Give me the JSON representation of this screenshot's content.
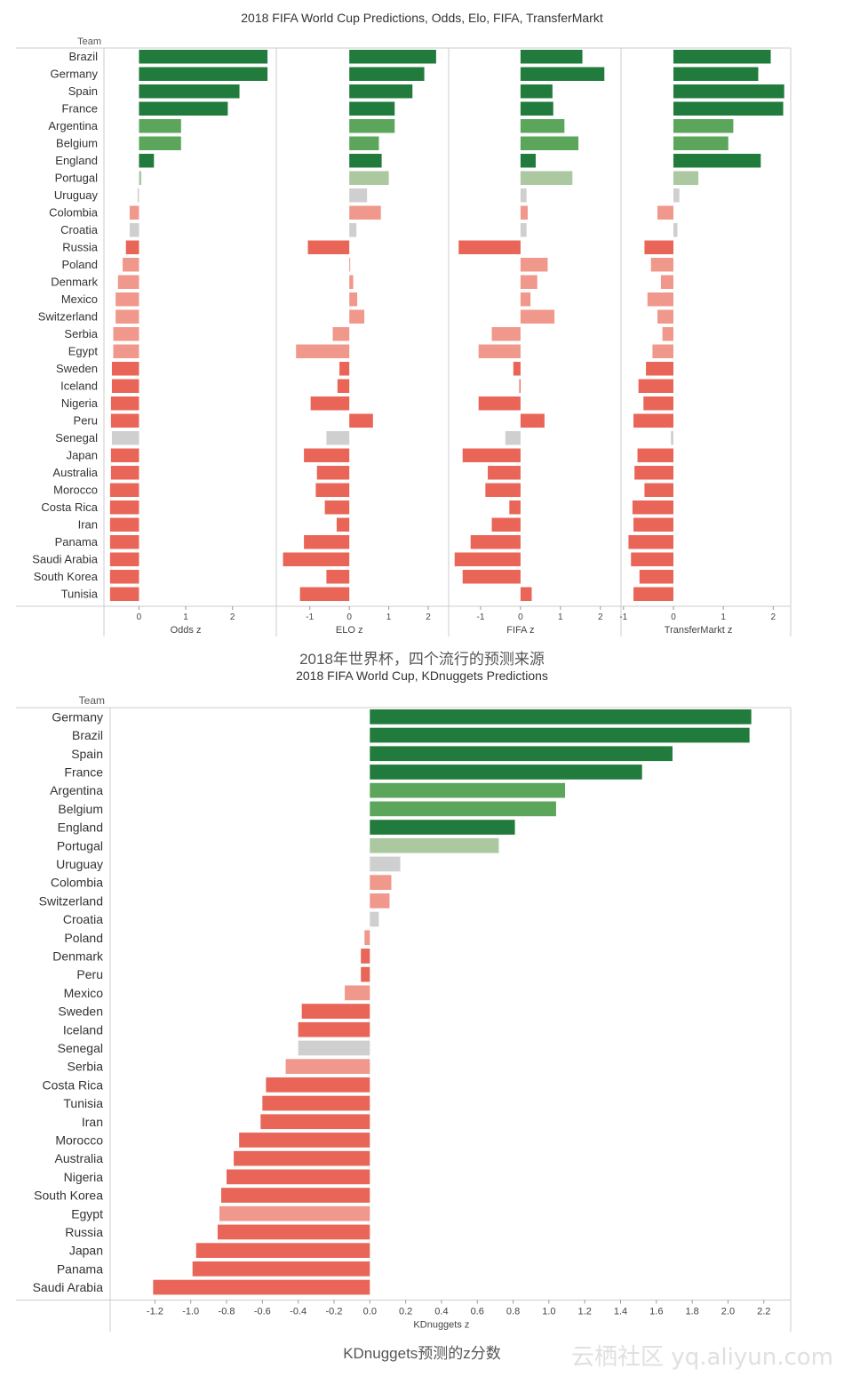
{
  "chart_data": [
    {
      "type": "bar",
      "title": "2018 FIFA World Cup Predictions, Odds, Elo, FIFA, TransferMarkt",
      "row_header": "Team",
      "categories": [
        "Brazil",
        "Germany",
        "Spain",
        "France",
        "Argentina",
        "Belgium",
        "England",
        "Portugal",
        "Uruguay",
        "Colombia",
        "Croatia",
        "Russia",
        "Poland",
        "Denmark",
        "Mexico",
        "Switzerland",
        "Serbia",
        "Egypt",
        "Sweden",
        "Iceland",
        "Nigeria",
        "Peru",
        "Senegal",
        "Japan",
        "Australia",
        "Morocco",
        "Costa Rica",
        "Iran",
        "Panama",
        "Saudi Arabia",
        "South Korea",
        "Tunisia"
      ],
      "panels": [
        {
          "xlabel": "Odds z",
          "xlim": [
            -0.75,
            2.9
          ],
          "ticks": [
            0,
            1,
            2
          ],
          "tick_labels": [
            "0",
            "1",
            "2"
          ],
          "values": [
            2.75,
            2.75,
            2.15,
            1.9,
            0.9,
            0.9,
            0.32,
            0.05,
            -0.03,
            -0.2,
            -0.2,
            -0.28,
            -0.35,
            -0.45,
            -0.5,
            -0.5,
            -0.55,
            -0.55,
            -0.58,
            -0.58,
            -0.6,
            -0.6,
            -0.58,
            -0.6,
            -0.6,
            -0.62,
            -0.62,
            -0.62,
            -0.62,
            -0.62,
            -0.62,
            -0.62
          ],
          "colors": [
            "#217b3c",
            "#217b3c",
            "#217b3c",
            "#217b3c",
            "#5ba65b",
            "#5ba65b",
            "#217b3c",
            "#abc8a0",
            "#cfcfcf",
            "#f0988b",
            "#cfcfcf",
            "#e86557",
            "#f0988b",
            "#f0988b",
            "#f0988b",
            "#f0988b",
            "#f0988b",
            "#f0988b",
            "#e86557",
            "#e86557",
            "#e86557",
            "#e86557",
            "#cfcfcf",
            "#e86557",
            "#e86557",
            "#e86557",
            "#e86557",
            "#e86557",
            "#e86557",
            "#e86557",
            "#e86557",
            "#e86557"
          ]
        },
        {
          "xlabel": "ELO z",
          "xlim": [
            -1.85,
            2.45
          ],
          "ticks": [
            -1,
            0,
            1,
            2
          ],
          "tick_labels": [
            "-1",
            "0",
            "1",
            "2"
          ],
          "values": [
            2.2,
            1.9,
            1.6,
            1.15,
            1.15,
            0.75,
            0.82,
            1.0,
            0.45,
            0.8,
            0.18,
            -1.05,
            0.02,
            0.1,
            0.2,
            0.38,
            -0.42,
            -1.35,
            -0.25,
            -0.3,
            -0.98,
            0.6,
            -0.58,
            -1.15,
            -0.82,
            -0.85,
            -0.62,
            -0.32,
            -1.15,
            -1.68,
            -0.58,
            -1.25
          ],
          "colors": [
            "#217b3c",
            "#217b3c",
            "#217b3c",
            "#217b3c",
            "#5ba65b",
            "#5ba65b",
            "#217b3c",
            "#abc8a0",
            "#cfcfcf",
            "#f0988b",
            "#cfcfcf",
            "#e86557",
            "#f0988b",
            "#f0988b",
            "#f0988b",
            "#f0988b",
            "#f0988b",
            "#f0988b",
            "#e86557",
            "#e86557",
            "#e86557",
            "#e86557",
            "#cfcfcf",
            "#e86557",
            "#e86557",
            "#e86557",
            "#e86557",
            "#e86557",
            "#e86557",
            "#e86557",
            "#e86557",
            "#e86557"
          ]
        },
        {
          "xlabel": "FIFA z",
          "xlim": [
            -1.8,
            2.45
          ],
          "ticks": [
            -1,
            0,
            1,
            2
          ],
          "tick_labels": [
            "-1",
            "0",
            "1",
            "2"
          ],
          "values": [
            1.55,
            2.1,
            0.8,
            0.82,
            1.1,
            1.45,
            0.38,
            1.3,
            0.15,
            0.18,
            0.15,
            -1.55,
            0.68,
            0.42,
            0.25,
            0.85,
            -0.72,
            -1.05,
            -0.18,
            -0.03,
            -1.05,
            0.6,
            -0.38,
            -1.45,
            -0.82,
            -0.88,
            -0.28,
            -0.72,
            -1.25,
            -1.65,
            -1.45,
            0.28
          ],
          "colors": [
            "#217b3c",
            "#217b3c",
            "#217b3c",
            "#217b3c",
            "#5ba65b",
            "#5ba65b",
            "#217b3c",
            "#abc8a0",
            "#cfcfcf",
            "#f0988b",
            "#cfcfcf",
            "#e86557",
            "#f0988b",
            "#f0988b",
            "#f0988b",
            "#f0988b",
            "#f0988b",
            "#f0988b",
            "#e86557",
            "#e86557",
            "#e86557",
            "#e86557",
            "#cfcfcf",
            "#e86557",
            "#e86557",
            "#e86557",
            "#e86557",
            "#e86557",
            "#e86557",
            "#e86557",
            "#e86557",
            "#e86557"
          ]
        },
        {
          "xlabel": "TransferMarkt z",
          "xlim": [
            -1.05,
            2.35
          ],
          "ticks": [
            -1,
            0,
            1,
            2
          ],
          "tick_labels": [
            "-1",
            "0",
            "1",
            "2"
          ],
          "values": [
            1.95,
            1.7,
            2.22,
            2.2,
            1.2,
            1.1,
            1.75,
            0.5,
            0.12,
            -0.32,
            0.08,
            -0.58,
            -0.45,
            -0.25,
            -0.52,
            -0.32,
            -0.22,
            -0.42,
            -0.55,
            -0.7,
            -0.6,
            -0.8,
            -0.05,
            -0.72,
            -0.78,
            -0.58,
            -0.82,
            -0.8,
            -0.9,
            -0.85,
            -0.68,
            -0.8
          ],
          "colors": [
            "#217b3c",
            "#217b3c",
            "#217b3c",
            "#217b3c",
            "#5ba65b",
            "#5ba65b",
            "#217b3c",
            "#abc8a0",
            "#cfcfcf",
            "#f0988b",
            "#cfcfcf",
            "#e86557",
            "#f0988b",
            "#f0988b",
            "#f0988b",
            "#f0988b",
            "#f0988b",
            "#f0988b",
            "#e86557",
            "#e86557",
            "#e86557",
            "#e86557",
            "#cfcfcf",
            "#e86557",
            "#e86557",
            "#e86557",
            "#e86557",
            "#e86557",
            "#e86557",
            "#e86557",
            "#e86557",
            "#e86557"
          ]
        }
      ],
      "caption": "2018年世界杯，四个流行的预测来源"
    },
    {
      "type": "bar",
      "title": "2018 FIFA World Cup, KDnuggets Predictions",
      "row_header": "Team",
      "xlabel": "KDnuggets z",
      "xlim": [
        -1.45,
        2.35
      ],
      "ticks": [
        -1.2,
        -1.0,
        -0.8,
        -0.6,
        -0.4,
        -0.2,
        0.0,
        0.2,
        0.4,
        0.6,
        0.8,
        1.0,
        1.2,
        1.4,
        1.6,
        1.8,
        2.0,
        2.2
      ],
      "tick_labels": [
        "-1.2",
        "-1.0",
        "-0.8",
        "-0.6",
        "-0.4",
        "-0.2",
        "0.0",
        "0.2",
        "0.4",
        "0.6",
        "0.8",
        "1.0",
        "1.2",
        "1.4",
        "1.6",
        "1.8",
        "2.0",
        "2.2"
      ],
      "categories": [
        "Germany",
        "Brazil",
        "Spain",
        "France",
        "Argentina",
        "Belgium",
        "England",
        "Portugal",
        "Uruguay",
        "Colombia",
        "Switzerland",
        "Croatia",
        "Poland",
        "Denmark",
        "Peru",
        "Mexico",
        "Sweden",
        "Iceland",
        "Senegal",
        "Serbia",
        "Costa Rica",
        "Tunisia",
        "Iran",
        "Morocco",
        "Australia",
        "Nigeria",
        "South Korea",
        "Egypt",
        "Russia",
        "Japan",
        "Panama",
        "Saudi Arabia"
      ],
      "values": [
        2.13,
        2.12,
        1.69,
        1.52,
        1.09,
        1.04,
        0.81,
        0.72,
        0.17,
        0.12,
        0.11,
        0.05,
        -0.03,
        -0.05,
        -0.05,
        -0.14,
        -0.38,
        -0.4,
        -0.4,
        -0.47,
        -0.58,
        -0.6,
        -0.61,
        -0.73,
        -0.76,
        -0.8,
        -0.83,
        -0.84,
        -0.85,
        -0.97,
        -0.99,
        -1.21
      ],
      "colors": [
        "#217b3c",
        "#217b3c",
        "#217b3c",
        "#217b3c",
        "#5ba65b",
        "#5ba65b",
        "#217b3c",
        "#abc8a0",
        "#cfcfcf",
        "#f0988b",
        "#f0988b",
        "#cfcfcf",
        "#f0988b",
        "#e86557",
        "#e86557",
        "#f0988b",
        "#e86557",
        "#e86557",
        "#cfcfcf",
        "#f0988b",
        "#e86557",
        "#e86557",
        "#e86557",
        "#e86557",
        "#e86557",
        "#e86557",
        "#e86557",
        "#f0988b",
        "#e86557",
        "#e86557",
        "#e86557",
        "#e86557"
      ],
      "caption": "KDnuggets预测的z分数"
    }
  ],
  "watermark": "云栖社区 yq.aliyun.com"
}
